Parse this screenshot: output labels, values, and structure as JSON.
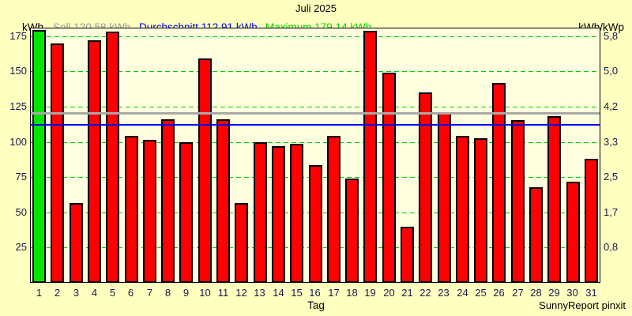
{
  "title": "Juli 2025",
  "header": {
    "y_axis_label_left": "kWh",
    "y_axis_label_right": "kWh/kWp",
    "legend_soll": "Soll 120.58 kWh",
    "legend_durchschnitt": "Durchschnitt 112.91 kWh",
    "legend_maximum": "Maximum 179.14 kWh"
  },
  "footer": {
    "xlabel": "Tag",
    "credit": "SunnyReport pinxit"
  },
  "colors": {
    "background": "#ffffc0",
    "plot_background": "#ffffe0",
    "bar_default": "#ff0000",
    "bar_max_day": "#00e600",
    "grid": "#00cc00",
    "soll_line": "#a8a8a8",
    "durchschnitt_line": "#0000ee",
    "soll_text": "#9a9a9a",
    "durchschnitt_text": "#0000e6",
    "maximum_text": "#00d800",
    "tick_text": "#1a1a4d",
    "axis": "#000000"
  },
  "chart_data": {
    "type": "bar",
    "title": "Juli 2025",
    "xlabel": "Tag",
    "ylabel_left": "kWh",
    "ylabel_right": "kWh/kWp",
    "categories": [
      1,
      2,
      3,
      4,
      5,
      6,
      7,
      8,
      9,
      10,
      11,
      12,
      13,
      14,
      15,
      16,
      17,
      18,
      19,
      20,
      21,
      22,
      23,
      24,
      25,
      26,
      27,
      28,
      29,
      30,
      31
    ],
    "values": [
      179.14,
      170,
      56.5,
      172,
      178,
      104.5,
      101.5,
      116,
      100,
      159,
      116,
      56.5,
      99.5,
      97,
      98.5,
      83.5,
      104,
      74,
      178.5,
      149,
      40,
      135,
      121,
      104,
      102.5,
      142,
      115.5,
      68,
      118,
      72,
      88
    ],
    "unit": "kWh",
    "max_day_index": 0,
    "soll": 120.58,
    "durchschnitt": 112.91,
    "maximum": 179.14,
    "ylim": [
      0,
      181
    ],
    "yticks_left": [
      25,
      50,
      75,
      100,
      125,
      150,
      175
    ],
    "yticks_right_labels": [
      "0,8",
      "1,7",
      "2,5",
      "3,3",
      "4,2",
      "5,0",
      "5,8"
    ],
    "grid": "horizontal dashed green",
    "legend_position": "top",
    "reference_lines": [
      {
        "name": "soll",
        "value": 120.58,
        "style": "solid thick gray"
      },
      {
        "name": "durchschnitt",
        "value": 112.91,
        "style": "solid thin blue"
      }
    ]
  }
}
